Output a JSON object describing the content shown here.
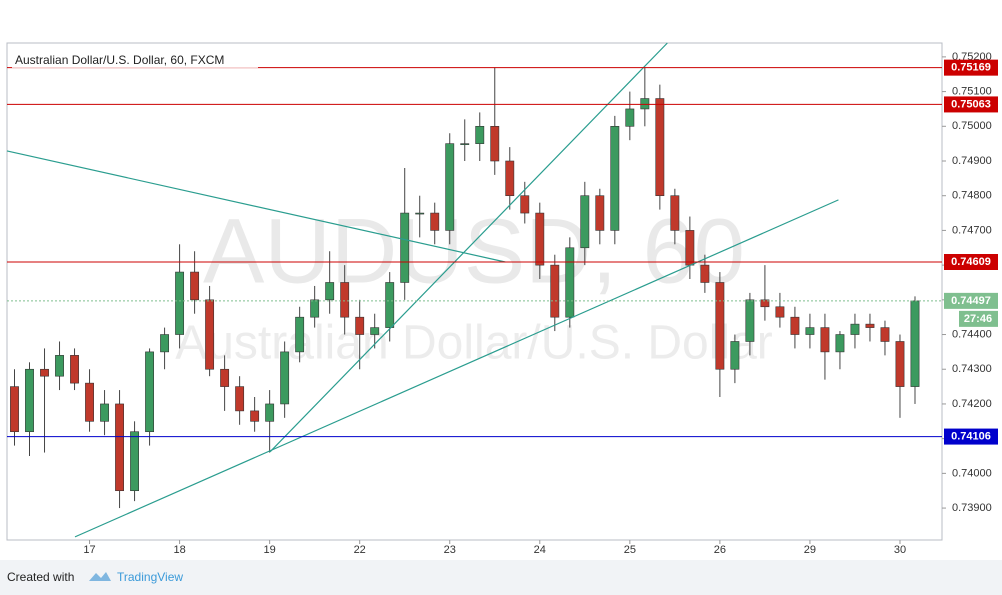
{
  "chart_data": {
    "type": "candlestick",
    "title": "Australian Dollar/U.S. Dollar, 60, FXCM",
    "watermark": "AUDUSD, 60",
    "watermark_subtitle": "Australian Dollar/U.S. Dollar",
    "xlim": [
      -0.5,
      61.8
    ],
    "xticks": [
      {
        "value": 5,
        "label": "17"
      },
      {
        "value": 11,
        "label": "18"
      },
      {
        "value": 17,
        "label": "19"
      },
      {
        "value": 23,
        "label": "22"
      },
      {
        "value": 29,
        "label": "23"
      },
      {
        "value": 35,
        "label": "24"
      },
      {
        "value": 41,
        "label": "25"
      },
      {
        "value": 47,
        "label": "26"
      },
      {
        "value": 53,
        "label": "29"
      },
      {
        "value": 59,
        "label": "30"
      }
    ],
    "ylim": [
      0.73808,
      0.7524
    ],
    "yticks": [
      {
        "value": 0.739,
        "label": "0.73900"
      },
      {
        "value": 0.74,
        "label": "0.74000"
      },
      {
        "value": 0.741,
        "label": "0.74100"
      },
      {
        "value": 0.742,
        "label": "0.74200"
      },
      {
        "value": 0.743,
        "label": "0.74300"
      },
      {
        "value": 0.744,
        "label": "0.74400"
      },
      {
        "value": 0.745,
        "label": "0.74500"
      },
      {
        "value": 0.746,
        "label": "0.74600"
      },
      {
        "value": 0.747,
        "label": "0.74700"
      },
      {
        "value": 0.748,
        "label": "0.74800"
      },
      {
        "value": 0.749,
        "label": "0.74900"
      },
      {
        "value": 0.75,
        "label": "0.75000"
      },
      {
        "value": 0.751,
        "label": "0.75100"
      },
      {
        "value": 0.752,
        "label": "0.75200"
      }
    ],
    "up_color": "#3c9a5f",
    "down_color": "#c0392b",
    "open": [
      0.7425,
      0.7412,
      0.743,
      0.7428,
      0.7434,
      0.7426,
      0.7415,
      0.742,
      0.7395,
      0.7412,
      0.7435,
      0.744,
      0.7458,
      0.745,
      0.743,
      0.7425,
      0.7418,
      0.7415,
      0.742,
      0.7435,
      0.7445,
      0.745,
      0.7455,
      0.7445,
      0.744,
      0.7442,
      0.7455,
      0.7475,
      0.7475,
      0.747,
      0.7495,
      0.7495,
      0.75,
      0.749,
      0.748,
      0.7475,
      0.746,
      0.7445,
      0.7465,
      0.748,
      0.747,
      0.75,
      0.7505,
      0.7508,
      0.748,
      0.747,
      0.746,
      0.7455,
      0.743,
      0.7438,
      0.745,
      0.7448,
      0.7445,
      0.744,
      0.7442,
      0.7435,
      0.744,
      0.7443,
      0.7442,
      0.7438,
      0.7425
    ],
    "high": [
      0.743,
      0.7432,
      0.7436,
      0.7438,
      0.7436,
      0.743,
      0.7424,
      0.7424,
      0.7415,
      0.7436,
      0.7442,
      0.7466,
      0.7464,
      0.7454,
      0.7434,
      0.7428,
      0.7422,
      0.7424,
      0.7438,
      0.7448,
      0.7454,
      0.7464,
      0.746,
      0.745,
      0.7446,
      0.7458,
      0.7488,
      0.748,
      0.7478,
      0.7498,
      0.7502,
      0.7504,
      0.7517,
      0.7494,
      0.7484,
      0.7478,
      0.7463,
      0.7468,
      0.7484,
      0.7482,
      0.7503,
      0.751,
      0.7517,
      0.7512,
      0.7482,
      0.7474,
      0.7463,
      0.7458,
      0.744,
      0.7452,
      0.746,
      0.7452,
      0.7448,
      0.7446,
      0.7446,
      0.7441,
      0.7446,
      0.7446,
      0.7444,
      0.744,
      0.7451
    ],
    "low": [
      0.7408,
      0.7405,
      0.7406,
      0.7424,
      0.7424,
      0.7412,
      0.7411,
      0.739,
      0.7392,
      0.7408,
      0.743,
      0.7436,
      0.7446,
      0.7428,
      0.7418,
      0.7414,
      0.7412,
      0.7406,
      0.7416,
      0.7432,
      0.7442,
      0.7446,
      0.744,
      0.743,
      0.7436,
      0.7438,
      0.745,
      0.7468,
      0.7466,
      0.7466,
      0.749,
      0.749,
      0.7486,
      0.7476,
      0.7472,
      0.7456,
      0.7441,
      0.7442,
      0.746,
      0.7466,
      0.7466,
      0.7496,
      0.75,
      0.7476,
      0.7466,
      0.7456,
      0.7452,
      0.7422,
      0.7426,
      0.7434,
      0.7444,
      0.7442,
      0.7436,
      0.7436,
      0.7427,
      0.743,
      0.7436,
      0.7438,
      0.7434,
      0.7416,
      0.742
    ],
    "close": [
      0.7412,
      0.743,
      0.7428,
      0.7434,
      0.7426,
      0.7415,
      0.742,
      0.7395,
      0.7412,
      0.7435,
      0.744,
      0.7458,
      0.745,
      0.743,
      0.7425,
      0.7418,
      0.7415,
      0.742,
      0.7435,
      0.7445,
      0.745,
      0.7455,
      0.7445,
      0.744,
      0.7442,
      0.7455,
      0.7475,
      0.7475,
      0.747,
      0.7495,
      0.7495,
      0.75,
      0.749,
      0.748,
      0.7475,
      0.746,
      0.7445,
      0.7465,
      0.748,
      0.747,
      0.75,
      0.7505,
      0.7508,
      0.748,
      0.747,
      0.746,
      0.7455,
      0.743,
      0.7438,
      0.745,
      0.7448,
      0.7445,
      0.744,
      0.7442,
      0.7435,
      0.744,
      0.7443,
      0.7442,
      0.7438,
      0.7425,
      0.74497
    ],
    "levels": [
      {
        "value": 0.75169,
        "color": "#cc0000"
      },
      {
        "value": 0.75063,
        "color": "#cc0000"
      },
      {
        "value": 0.74609,
        "color": "#cc0000"
      },
      {
        "value": 0.74106,
        "color": "#0000cc"
      }
    ],
    "last_price": 0.74497,
    "last_price_color": "#7fbf8f",
    "countdown": "27:46",
    "trendline_color": "#2a9d8f",
    "trendlines": [
      {
        "x": [
          -0.5,
          32.7
        ],
        "y": [
          0.74929,
          0.74609
        ]
      },
      {
        "x": [
          17.03,
          43.5
        ],
        "y": [
          0.74062,
          0.7524
        ]
      },
      {
        "x": [
          4.03,
          54.9
        ],
        "y": [
          0.73817,
          0.74788
        ]
      }
    ]
  },
  "footer": {
    "prefix": "Created with",
    "brand": "TradingView"
  }
}
